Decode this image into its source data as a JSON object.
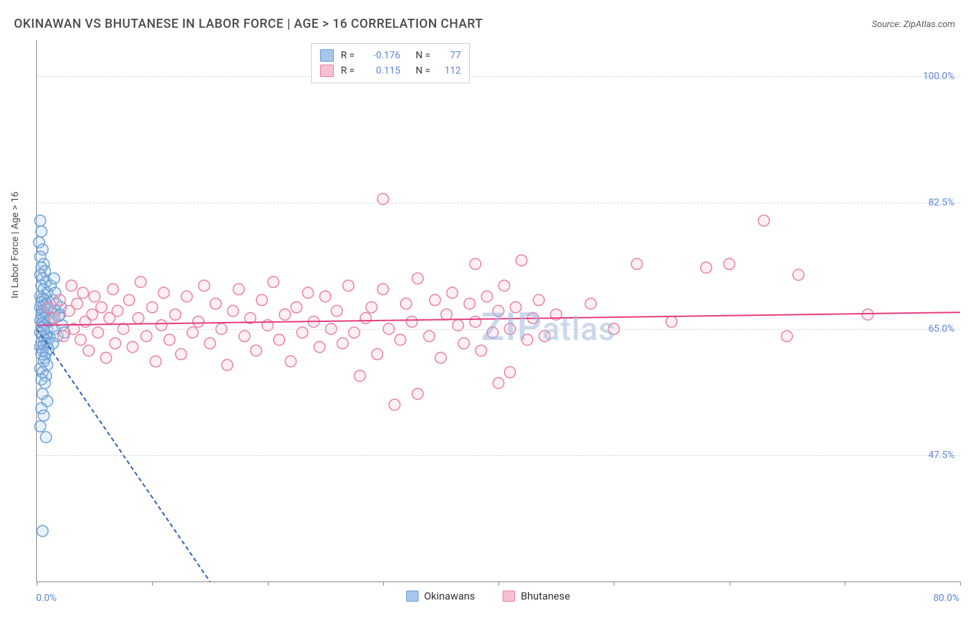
{
  "title": "OKINAWAN VS BHUTANESE IN LABOR FORCE | AGE > 16 CORRELATION CHART",
  "source_label": "Source: ZipAtlas.com",
  "yaxis_label": "In Labor Force | Age > 16",
  "watermark": "ZIPatlas",
  "chart": {
    "type": "scatter",
    "xlim": [
      0.0,
      80.0
    ],
    "ylim": [
      30.0,
      105.0
    ],
    "x_tick_positions": [
      0,
      10,
      20,
      30,
      40,
      50,
      60,
      70,
      80
    ],
    "y_gridlines": [
      47.5,
      65.0,
      82.5,
      100.0
    ],
    "y_tick_labels": [
      "47.5%",
      "65.0%",
      "82.5%",
      "100.0%"
    ],
    "x_min_label": "0.0%",
    "x_max_label": "80.0%",
    "background_color": "#ffffff",
    "grid_color": "#d9d9d9",
    "axis_color": "#888888",
    "marker_radius": 8,
    "marker_stroke_width": 1.5,
    "marker_fill_opacity": 0.25,
    "trendline_width": 2
  },
  "series": {
    "okinawans": {
      "label": "Okinawans",
      "fill": "#a7c6ed",
      "stroke": "#6a9fd4",
      "trend_color": "#2f5fb3",
      "trend_dash": "6 4",
      "R": "-0.176",
      "N": "77",
      "trendline": {
        "x1": 0.0,
        "y1": 65.0,
        "x2": 15.0,
        "y2": 30.0
      },
      "points": [
        [
          0.3,
          80.0
        ],
        [
          0.4,
          78.5
        ],
        [
          0.2,
          77.0
        ],
        [
          0.5,
          76.0
        ],
        [
          0.3,
          75.0
        ],
        [
          0.6,
          74.0
        ],
        [
          0.4,
          73.5
        ],
        [
          0.7,
          73.0
        ],
        [
          0.3,
          72.5
        ],
        [
          0.5,
          72.0
        ],
        [
          0.8,
          71.5
        ],
        [
          0.4,
          71.0
        ],
        [
          0.6,
          70.5
        ],
        [
          0.9,
          70.0
        ],
        [
          0.3,
          69.5
        ],
        [
          0.5,
          69.2
        ],
        [
          0.7,
          69.0
        ],
        [
          0.4,
          68.7
        ],
        [
          0.8,
          68.5
        ],
        [
          0.6,
          68.2
        ],
        [
          0.3,
          68.0
        ],
        [
          0.9,
          67.7
        ],
        [
          0.5,
          67.5
        ],
        [
          0.7,
          67.2
        ],
        [
          0.4,
          67.0
        ],
        [
          0.8,
          66.8
        ],
        [
          0.6,
          66.5
        ],
        [
          0.3,
          66.2
        ],
        [
          1.0,
          66.0
        ],
        [
          0.5,
          65.8
        ],
        [
          0.7,
          65.5
        ],
        [
          0.4,
          65.2
        ],
        [
          0.9,
          65.0
        ],
        [
          0.6,
          64.8
        ],
        [
          0.3,
          64.5
        ],
        [
          0.8,
          64.2
        ],
        [
          0.5,
          64.0
        ],
        [
          1.1,
          63.8
        ],
        [
          0.7,
          63.5
        ],
        [
          0.4,
          63.2
        ],
        [
          0.9,
          63.0
        ],
        [
          0.6,
          62.7
        ],
        [
          0.3,
          62.5
        ],
        [
          1.0,
          62.2
        ],
        [
          0.5,
          62.0
        ],
        [
          0.8,
          61.7
        ],
        [
          0.4,
          61.5
        ],
        [
          0.7,
          61.0
        ],
        [
          0.6,
          60.5
        ],
        [
          0.9,
          60.0
        ],
        [
          0.3,
          59.5
        ],
        [
          0.5,
          59.0
        ],
        [
          0.8,
          58.5
        ],
        [
          0.4,
          58.0
        ],
        [
          0.7,
          57.5
        ],
        [
          0.5,
          56.0
        ],
        [
          0.9,
          55.0
        ],
        [
          0.4,
          54.0
        ],
        [
          0.6,
          53.0
        ],
        [
          0.3,
          51.5
        ],
        [
          0.8,
          50.0
        ],
        [
          0.5,
          37.0
        ],
        [
          1.2,
          71.0
        ],
        [
          1.4,
          69.0
        ],
        [
          1.6,
          67.5
        ],
        [
          1.3,
          66.5
        ],
        [
          1.5,
          65.0
        ],
        [
          1.8,
          64.0
        ],
        [
          1.4,
          63.0
        ],
        [
          1.7,
          68.5
        ],
        [
          2.0,
          67.0
        ],
        [
          1.6,
          70.0
        ],
        [
          2.2,
          65.5
        ],
        [
          1.9,
          66.8
        ],
        [
          2.4,
          64.5
        ],
        [
          1.5,
          72.0
        ],
        [
          2.1,
          68.0
        ]
      ]
    },
    "bhutanese": {
      "label": "Bhutanese",
      "fill": "#f6c1cf",
      "stroke": "#e97fa3",
      "trend_color": "#e6397f",
      "trend_dash": "none",
      "R": "0.115",
      "N": "112",
      "trendline": {
        "x1": 0.0,
        "y1": 65.5,
        "x2": 80.0,
        "y2": 67.3
      },
      "points": [
        [
          1.0,
          68.0
        ],
        [
          1.5,
          66.5
        ],
        [
          2.0,
          69.0
        ],
        [
          2.3,
          64.0
        ],
        [
          2.8,
          67.5
        ],
        [
          3.0,
          71.0
        ],
        [
          3.2,
          65.0
        ],
        [
          3.5,
          68.5
        ],
        [
          3.8,
          63.5
        ],
        [
          4.0,
          70.0
        ],
        [
          4.2,
          66.0
        ],
        [
          4.5,
          62.0
        ],
        [
          4.8,
          67.0
        ],
        [
          5.0,
          69.5
        ],
        [
          5.3,
          64.5
        ],
        [
          5.6,
          68.0
        ],
        [
          6.0,
          61.0
        ],
        [
          6.3,
          66.5
        ],
        [
          6.6,
          70.5
        ],
        [
          6.8,
          63.0
        ],
        [
          7.0,
          67.5
        ],
        [
          7.5,
          65.0
        ],
        [
          8.0,
          69.0
        ],
        [
          8.3,
          62.5
        ],
        [
          8.8,
          66.5
        ],
        [
          9.0,
          71.5
        ],
        [
          9.5,
          64.0
        ],
        [
          10.0,
          68.0
        ],
        [
          10.3,
          60.5
        ],
        [
          10.8,
          65.5
        ],
        [
          11.0,
          70.0
        ],
        [
          11.5,
          63.5
        ],
        [
          12.0,
          67.0
        ],
        [
          12.5,
          61.5
        ],
        [
          13.0,
          69.5
        ],
        [
          13.5,
          64.5
        ],
        [
          14.0,
          66.0
        ],
        [
          14.5,
          71.0
        ],
        [
          15.0,
          63.0
        ],
        [
          15.5,
          68.5
        ],
        [
          16.0,
          65.0
        ],
        [
          16.5,
          60.0
        ],
        [
          17.0,
          67.5
        ],
        [
          17.5,
          70.5
        ],
        [
          18.0,
          64.0
        ],
        [
          18.5,
          66.5
        ],
        [
          19.0,
          62.0
        ],
        [
          19.5,
          69.0
        ],
        [
          20.0,
          65.5
        ],
        [
          20.5,
          71.5
        ],
        [
          21.0,
          63.5
        ],
        [
          21.5,
          67.0
        ],
        [
          22.0,
          60.5
        ],
        [
          22.5,
          68.0
        ],
        [
          23.0,
          64.5
        ],
        [
          23.5,
          70.0
        ],
        [
          24.0,
          66.0
        ],
        [
          24.5,
          62.5
        ],
        [
          25.0,
          69.5
        ],
        [
          25.5,
          65.0
        ],
        [
          26.0,
          67.5
        ],
        [
          26.5,
          63.0
        ],
        [
          27.0,
          71.0
        ],
        [
          27.5,
          64.5
        ],
        [
          28.0,
          58.5
        ],
        [
          28.5,
          66.5
        ],
        [
          29.0,
          68.0
        ],
        [
          29.5,
          61.5
        ],
        [
          30.0,
          70.5
        ],
        [
          30.5,
          65.0
        ],
        [
          30.0,
          83.0
        ],
        [
          31.0,
          54.5
        ],
        [
          31.5,
          63.5
        ],
        [
          32.0,
          68.5
        ],
        [
          32.5,
          66.0
        ],
        [
          33.0,
          56.0
        ],
        [
          33.0,
          72.0
        ],
        [
          34.0,
          64.0
        ],
        [
          34.5,
          69.0
        ],
        [
          35.0,
          61.0
        ],
        [
          35.5,
          67.0
        ],
        [
          36.0,
          70.0
        ],
        [
          36.5,
          65.5
        ],
        [
          37.0,
          63.0
        ],
        [
          37.5,
          68.5
        ],
        [
          38.0,
          66.0
        ],
        [
          38.5,
          62.0
        ],
        [
          39.0,
          69.5
        ],
        [
          39.5,
          64.5
        ],
        [
          40.0,
          67.5
        ],
        [
          40.5,
          71.0
        ],
        [
          40.0,
          57.5
        ],
        [
          41.0,
          59.0
        ],
        [
          41.0,
          65.0
        ],
        [
          41.5,
          68.0
        ],
        [
          42.0,
          74.5
        ],
        [
          42.5,
          63.5
        ],
        [
          43.0,
          66.5
        ],
        [
          43.5,
          69.0
        ],
        [
          44.0,
          64.0
        ],
        [
          38.0,
          74.0
        ],
        [
          45.0,
          67.0
        ],
        [
          48.0,
          68.5
        ],
        [
          50.0,
          65.0
        ],
        [
          52.0,
          74.0
        ],
        [
          55.0,
          66.0
        ],
        [
          58.0,
          73.5
        ],
        [
          60.0,
          74.0
        ],
        [
          63.0,
          80.0
        ],
        [
          65.0,
          64.0
        ],
        [
          66.0,
          72.5
        ],
        [
          72.0,
          67.0
        ]
      ]
    }
  },
  "legend_top": {
    "rows": [
      {
        "swatch": "okinawans",
        "r_label": "R =",
        "r_val": "-0.176",
        "n_label": "N =",
        "n_val": "77"
      },
      {
        "swatch": "bhutanese",
        "r_label": "R =",
        "r_val": "0.115",
        "n_label": "N =",
        "n_val": "112"
      }
    ]
  },
  "legend_bottom": {
    "items": [
      {
        "swatch": "okinawans",
        "label": "Okinawans"
      },
      {
        "swatch": "bhutanese",
        "label": "Bhutanese"
      }
    ]
  }
}
